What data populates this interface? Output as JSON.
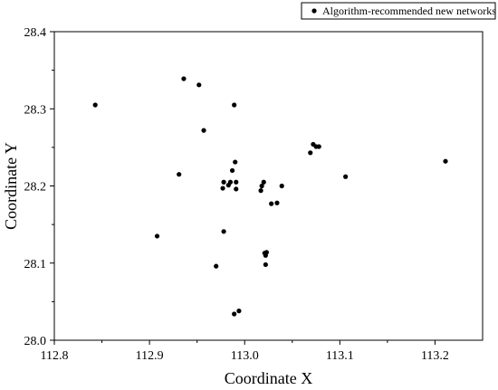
{
  "chart_data": {
    "type": "scatter",
    "xlabel": "Coordinate X",
    "ylabel": "Coordinate Y",
    "xlim": [
      112.8,
      113.25
    ],
    "ylim": [
      28.0,
      28.4
    ],
    "xticks": [
      "112.8",
      "112.9",
      "113.0",
      "113.1",
      "113.2"
    ],
    "yticks": [
      "28.0",
      "28.1",
      "28.2",
      "28.3",
      "28.4"
    ],
    "grid": false,
    "legend_position": "top-right",
    "marker_color": "#000000",
    "series": [
      {
        "name": "Algorithm-recommended new networks",
        "points": [
          {
            "x": 112.843,
            "y": 28.305
          },
          {
            "x": 112.908,
            "y": 28.135
          },
          {
            "x": 112.931,
            "y": 28.215
          },
          {
            "x": 112.936,
            "y": 28.339
          },
          {
            "x": 112.952,
            "y": 28.331
          },
          {
            "x": 112.957,
            "y": 28.272
          },
          {
            "x": 112.97,
            "y": 28.096
          },
          {
            "x": 112.977,
            "y": 28.197
          },
          {
            "x": 112.978,
            "y": 28.205
          },
          {
            "x": 112.978,
            "y": 28.141
          },
          {
            "x": 112.983,
            "y": 28.201
          },
          {
            "x": 112.985,
            "y": 28.205
          },
          {
            "x": 112.987,
            "y": 28.22
          },
          {
            "x": 112.989,
            "y": 28.305
          },
          {
            "x": 112.99,
            "y": 28.231
          },
          {
            "x": 112.991,
            "y": 28.205
          },
          {
            "x": 112.991,
            "y": 28.196
          },
          {
            "x": 112.989,
            "y": 28.034
          },
          {
            "x": 112.994,
            "y": 28.038
          },
          {
            "x": 113.017,
            "y": 28.194
          },
          {
            "x": 113.018,
            "y": 28.2
          },
          {
            "x": 113.02,
            "y": 28.205
          },
          {
            "x": 113.021,
            "y": 28.113
          },
          {
            "x": 113.022,
            "y": 28.11
          },
          {
            "x": 113.022,
            "y": 28.098
          },
          {
            "x": 113.023,
            "y": 28.114
          },
          {
            "x": 113.028,
            "y": 28.177
          },
          {
            "x": 113.034,
            "y": 28.178
          },
          {
            "x": 113.039,
            "y": 28.2
          },
          {
            "x": 113.069,
            "y": 28.243
          },
          {
            "x": 113.072,
            "y": 28.254
          },
          {
            "x": 113.075,
            "y": 28.251
          },
          {
            "x": 113.078,
            "y": 28.251
          },
          {
            "x": 113.106,
            "y": 28.212
          },
          {
            "x": 113.211,
            "y": 28.232
          }
        ]
      }
    ]
  }
}
